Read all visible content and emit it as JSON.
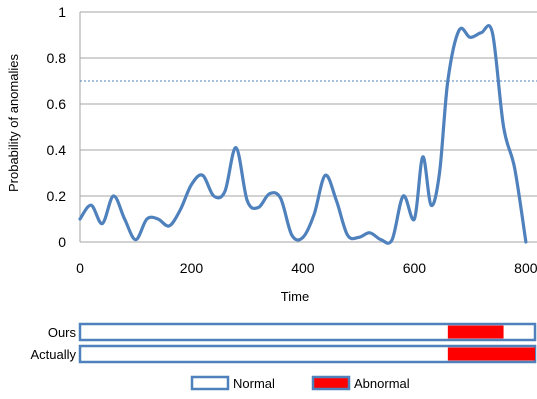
{
  "chart_data": {
    "type": "line",
    "xlabel": "Time",
    "ylabel": "Probability of anomalies",
    "xlim": [
      0,
      820
    ],
    "ylim": [
      0,
      1
    ],
    "x_ticks": [
      0,
      200,
      400,
      600,
      800
    ],
    "x_tick_labels": [
      "0",
      "200",
      "400",
      "600",
      "800"
    ],
    "y_ticks": [
      0,
      0.2,
      0.4,
      0.6,
      0.8,
      1
    ],
    "y_tick_labels": [
      "0",
      "0.2",
      "0.4",
      "0.6",
      "0.8",
      "1"
    ],
    "grid": "horizontal",
    "threshold": 0.7,
    "series": [
      {
        "color": "#4f81bd",
        "x": [
          0,
          20,
          40,
          60,
          80,
          100,
          120,
          140,
          160,
          180,
          200,
          220,
          240,
          260,
          280,
          300,
          320,
          340,
          360,
          380,
          400,
          420,
          440,
          460,
          480,
          500,
          520,
          540,
          560,
          580,
          600,
          615,
          630,
          645,
          660,
          680,
          700,
          720,
          740,
          760,
          780,
          800
        ],
        "y": [
          0.1,
          0.16,
          0.08,
          0.2,
          0.1,
          0.01,
          0.1,
          0.1,
          0.07,
          0.14,
          0.25,
          0.29,
          0.2,
          0.22,
          0.41,
          0.18,
          0.15,
          0.21,
          0.19,
          0.03,
          0.02,
          0.12,
          0.29,
          0.18,
          0.03,
          0.02,
          0.04,
          0.01,
          0.01,
          0.2,
          0.1,
          0.37,
          0.16,
          0.3,
          0.7,
          0.92,
          0.89,
          0.91,
          0.91,
          0.5,
          0.32,
          0
        ]
      }
    ]
  },
  "timeline": {
    "rows": [
      {
        "label": "Ours",
        "abnormal": [
          [
            660,
            760
          ]
        ]
      },
      {
        "label": "Actually",
        "abnormal": [
          [
            660,
            820
          ]
        ]
      }
    ],
    "legend": [
      {
        "label": "Normal",
        "color": "#ffffff",
        "border": "#4f81bd"
      },
      {
        "label": "Abnormal",
        "color": "#ff0000",
        "border": "#4f81bd"
      }
    ],
    "normal_color": "#ffffff",
    "abnormal_color": "#ff0000",
    "border_color": "#4f81bd"
  }
}
